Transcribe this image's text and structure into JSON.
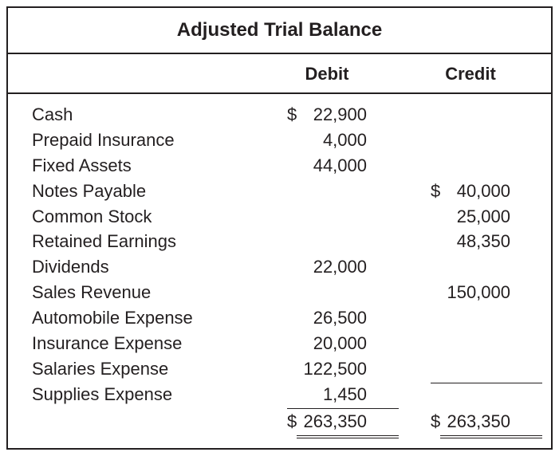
{
  "title": "Adjusted Trial Balance",
  "headers": {
    "debit": "Debit",
    "credit": "Credit"
  },
  "colors": {
    "border": "#231f20",
    "text": "#231f20",
    "background": "#ffffff"
  },
  "typography": {
    "title_fontsize": 24,
    "header_fontsize": 22,
    "body_fontsize": 22,
    "font_family": "Arial"
  },
  "rows": [
    {
      "account": "Cash",
      "debit_prefix": "$",
      "debit": "22,900",
      "credit_prefix": "",
      "credit": ""
    },
    {
      "account": "Prepaid Insurance",
      "debit_prefix": "",
      "debit": "4,000",
      "credit_prefix": "",
      "credit": ""
    },
    {
      "account": "Fixed Assets",
      "debit_prefix": "",
      "debit": "44,000",
      "credit_prefix": "",
      "credit": ""
    },
    {
      "account": "Notes Payable",
      "debit_prefix": "",
      "debit": "",
      "credit_prefix": "$",
      "credit": "40,000"
    },
    {
      "account": "Common Stock",
      "debit_prefix": "",
      "debit": "",
      "credit_prefix": "",
      "credit": "25,000"
    },
    {
      "account": "Retained Earnings",
      "debit_prefix": "",
      "debit": "",
      "credit_prefix": "",
      "credit": "48,350"
    },
    {
      "account": "Dividends",
      "debit_prefix": "",
      "debit": "22,000",
      "credit_prefix": "",
      "credit": ""
    },
    {
      "account": "Sales Revenue",
      "debit_prefix": "",
      "debit": "",
      "credit_prefix": "",
      "credit": "150,000"
    },
    {
      "account": "Automobile Expense",
      "debit_prefix": "",
      "debit": "26,500",
      "credit_prefix": "",
      "credit": ""
    },
    {
      "account": "Insurance Expense",
      "debit_prefix": "",
      "debit": "20,000",
      "credit_prefix": "",
      "credit": ""
    },
    {
      "account": "Salaries Expense",
      "debit_prefix": "",
      "debit": "122,500",
      "credit_prefix": "",
      "credit": ""
    },
    {
      "account": "Supplies Expense",
      "debit_prefix": "",
      "debit": "1,450",
      "credit_prefix": "",
      "credit": ""
    }
  ],
  "totals": {
    "debit_prefix": "$",
    "debit": "263,350",
    "credit_prefix": "$",
    "credit": "263,350"
  }
}
